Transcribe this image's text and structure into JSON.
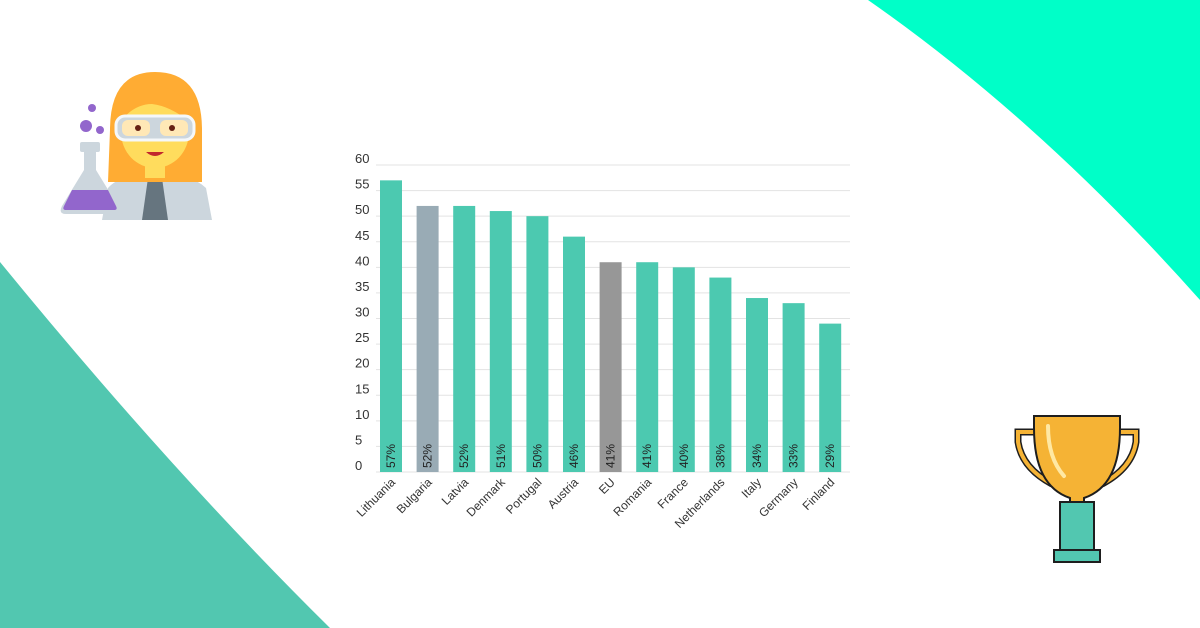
{
  "colors": {
    "accent_top": "#00FFC8",
    "accent_bottom": "#52C7B0",
    "bar_default": "#4CC9B0",
    "bar_bulgaria": "#99ABB5",
    "bar_eu": "#979797",
    "grid": "#E3E3E3"
  },
  "icons": {
    "left": "scientist-woman-icon",
    "right": "trophy-icon"
  },
  "chart_data": {
    "type": "bar",
    "title": "",
    "xlabel": "",
    "ylabel": "",
    "ylim": [
      0,
      60
    ],
    "yticks": [
      0,
      5,
      10,
      15,
      20,
      25,
      30,
      35,
      40,
      45,
      50,
      55,
      60
    ],
    "grid": true,
    "categories": [
      "Lithuania",
      "Bulgaria",
      "Latvia",
      "Denmark",
      "Portugal",
      "Austria",
      "EU",
      "Romania",
      "France",
      "Netherlands",
      "Italy",
      "Germany",
      "Finland"
    ],
    "values": [
      57,
      52,
      52,
      51,
      50,
      46,
      41,
      41,
      40,
      38,
      34,
      33,
      29
    ],
    "data_labels": [
      "57%",
      "52%",
      "52%",
      "51%",
      "50%",
      "46%",
      "41%",
      "41%",
      "40%",
      "38%",
      "34%",
      "33%",
      "29%"
    ],
    "bar_colors": [
      "#4CC9B0",
      "#99ABB5",
      "#4CC9B0",
      "#4CC9B0",
      "#4CC9B0",
      "#4CC9B0",
      "#979797",
      "#4CC9B0",
      "#4CC9B0",
      "#4CC9B0",
      "#4CC9B0",
      "#4CC9B0",
      "#4CC9B0"
    ]
  }
}
